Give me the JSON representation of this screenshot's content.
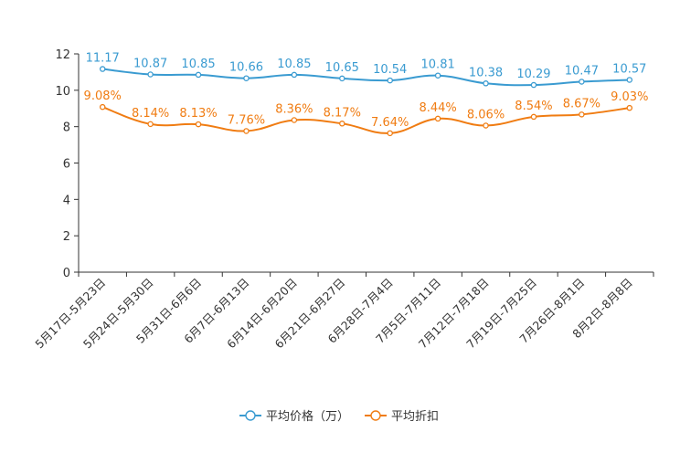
{
  "chart_data": {
    "type": "line",
    "title": "",
    "xlabel": "",
    "ylabel": "",
    "ylim": [
      0,
      12
    ],
    "yticks": [
      0,
      2,
      4,
      6,
      8,
      10,
      12
    ],
    "grid": false,
    "legend_position": "bottom-center",
    "categories": [
      "5月17日-5月23日",
      "5月24日-5月30日",
      "5月31日-6月6日",
      "6月7日-6月13日",
      "6月14日-6月20日",
      "6月21日-6月27日",
      "6月28日-7月4日",
      "7月5日-7月11日",
      "7月12日-7月18日",
      "7月19日-7月25日",
      "7月26日-8月1日",
      "8月2日-8月8日"
    ],
    "series": [
      {
        "name": "平均价格（万）",
        "color": "#3a9bd1",
        "values": [
          11.17,
          10.87,
          10.85,
          10.66,
          10.85,
          10.65,
          10.54,
          10.81,
          10.38,
          10.29,
          10.47,
          10.57
        ],
        "labels": [
          "11.17",
          "10.87",
          "10.85",
          "10.66",
          "10.85",
          "10.65",
          "10.54",
          "10.81",
          "10.38",
          "10.29",
          "10.47",
          "10.57"
        ]
      },
      {
        "name": "平均折扣",
        "color": "#f07c12",
        "values": [
          9.08,
          8.14,
          8.13,
          7.76,
          8.36,
          8.17,
          7.64,
          8.44,
          8.06,
          8.54,
          8.67,
          9.03
        ],
        "labels": [
          "9.08%",
          "8.14%",
          "8.13%",
          "7.76%",
          "8.36%",
          "8.17%",
          "7.64%",
          "8.44%",
          "8.06%",
          "8.54%",
          "8.67%",
          "9.03%"
        ]
      }
    ]
  }
}
